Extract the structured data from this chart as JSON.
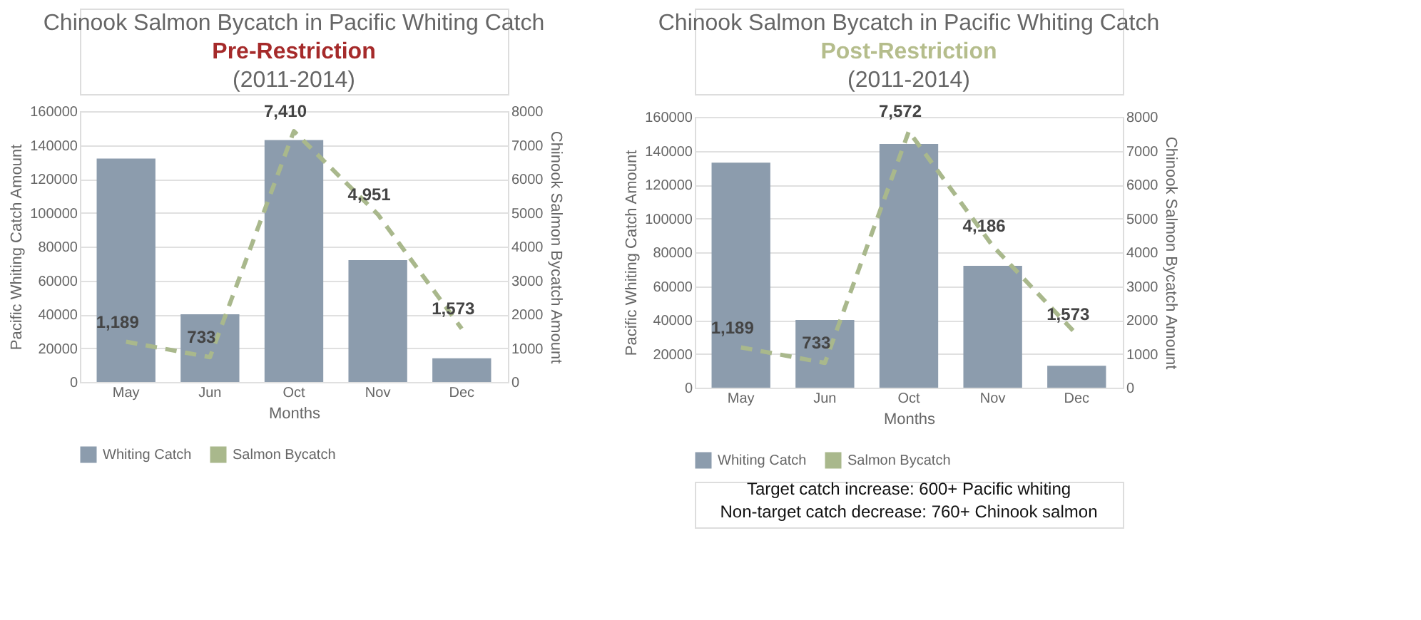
{
  "chart_data": [
    {
      "type": "bar",
      "title": "Chinook Salmon Bycatch in Pacific Whiting Catch",
      "subtitle": "Pre-Restriction\n(2011-2014)",
      "xlabel": "Months",
      "ylabel": "Pacific Whiting Catch Amount",
      "y2label": "Chinook Salmon Bycatch Amount",
      "categories": [
        "May",
        "Jun",
        "Oct",
        "Nov",
        "Dec"
      ],
      "series": [
        {
          "name": "Whiting Catch",
          "color": "#8c9cad",
          "values": [
            132000,
            40000,
            143000,
            72000,
            14000
          ]
        },
        {
          "name": "Salmon Bycatch",
          "type": "line",
          "axis": "y2",
          "color": "#a9b88c",
          "line_style": "dashed",
          "values": [
            1189,
            733,
            7410,
            4951,
            1573
          ],
          "value_labels": [
            "1,189",
            "733",
            "7,410",
            "4,951",
            "1,573"
          ]
        }
      ],
      "ylim": [
        0,
        160000
      ],
      "yticks": [
        0,
        20000,
        40000,
        60000,
        80000,
        100000,
        120000,
        140000,
        160000
      ],
      "y2lim": [
        0,
        8000
      ],
      "y2ticks": [
        0,
        1000,
        2000,
        3000,
        4000,
        5000,
        6000,
        7000,
        8000
      ],
      "grid": "y",
      "legend": "bottom",
      "marker": "none"
    },
    {
      "type": "bar",
      "title": "Chinook Salmon Bycatch in Pacific Whiting Catch",
      "subtitle": "Post-Restriction\n(2011-2014)",
      "xlabel": "Months",
      "ylabel": "Pacific Whiting Catch Amount",
      "y2label": "Chinook Salmon Bycatch Amount",
      "categories": [
        "May",
        "Jun",
        "Oct",
        "Nov",
        "Dec"
      ],
      "series": [
        {
          "name": "Whiting Catch",
          "color": "#8c9cad",
          "values": [
            133000,
            40000,
            144000,
            72000,
            13000
          ]
        },
        {
          "name": "Salmon Bycatch",
          "type": "line",
          "axis": "y2",
          "color": "#a9b88c",
          "line_style": "dashed",
          "values": [
            1189,
            733,
            7572,
            4186,
            1573
          ],
          "value_labels": [
            "1,189",
            "733",
            "7,572",
            "4,186",
            "1,573"
          ]
        }
      ],
      "ylim": [
        0,
        160000
      ],
      "yticks": [
        0,
        20000,
        40000,
        60000,
        80000,
        100000,
        120000,
        140000,
        160000
      ],
      "y2lim": [
        0,
        8000
      ],
      "y2ticks": [
        0,
        1000,
        2000,
        3000,
        4000,
        5000,
        6000,
        7000,
        8000
      ],
      "grid": "y",
      "legend": "bottom",
      "marker": "none",
      "annotations": [
        "Target catch increase: 600+ Pacific whiting",
        "Non-target catch decrease: 760+ Chinook salmon"
      ]
    }
  ]
}
